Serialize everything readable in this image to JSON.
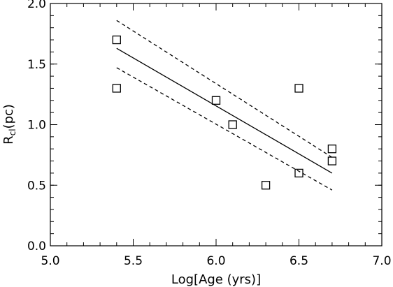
{
  "chart_data": {
    "type": "scatter",
    "xlabel": "Log[Age (yrs)]",
    "ylabel": {
      "main": "R",
      "sub": "cl",
      "unit": "(pc)"
    },
    "xlim": [
      5.0,
      7.0
    ],
    "ylim": [
      0.0,
      2.0
    ],
    "x_ticks": [
      "5.0",
      "5.5",
      "6.0",
      "6.5",
      "7.0"
    ],
    "y_ticks": [
      "0.0",
      "0.5",
      "1.0",
      "1.5",
      "2.0"
    ],
    "x_minor_step": 0.1,
    "y_minor_step": 0.1,
    "grid": false,
    "legend": "none",
    "points": [
      {
        "x": 5.4,
        "y": 1.7
      },
      {
        "x": 5.4,
        "y": 1.3
      },
      {
        "x": 6.0,
        "y": 1.2
      },
      {
        "x": 6.1,
        "y": 1.0
      },
      {
        "x": 6.3,
        "y": 0.5
      },
      {
        "x": 6.5,
        "y": 1.3
      },
      {
        "x": 6.5,
        "y": 0.6
      },
      {
        "x": 6.7,
        "y": 0.8
      },
      {
        "x": 6.7,
        "y": 0.7
      }
    ],
    "fit_line": {
      "x": [
        5.4,
        6.7
      ],
      "y": [
        1.63,
        0.6
      ]
    },
    "upper_band": {
      "x": [
        5.4,
        6.7
      ],
      "y": [
        1.86,
        0.73
      ]
    },
    "lower_band": {
      "x": [
        5.4,
        6.7
      ],
      "y": [
        1.47,
        0.46
      ]
    },
    "colors": {
      "marks": "#000000",
      "background": "#ffffff"
    }
  }
}
